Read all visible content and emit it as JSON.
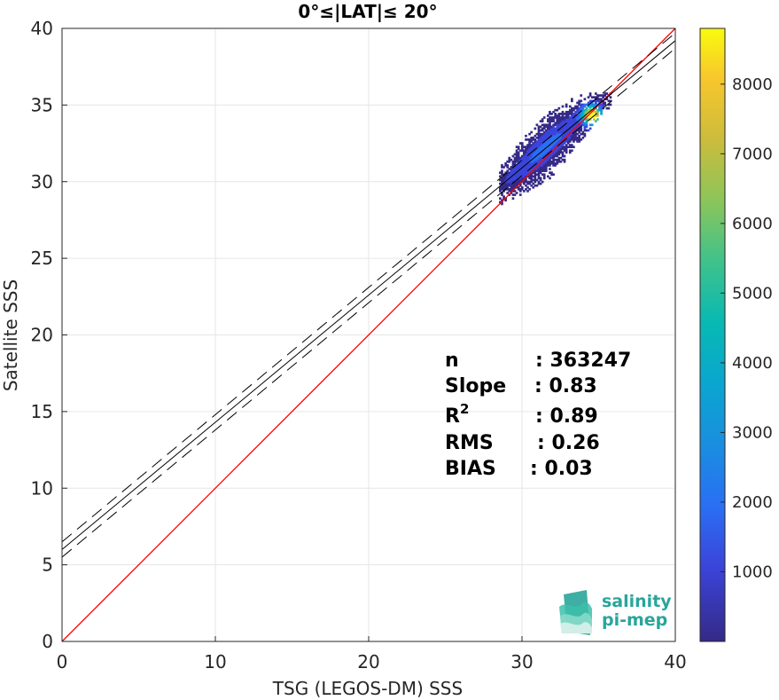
{
  "chart_data": {
    "type": "heatmap",
    "title": "0°≤|LAT|≤ 20°",
    "xlabel": "TSG (LEGOS-DM) SSS",
    "ylabel": "Satellite SSS",
    "xlim": [
      0,
      40
    ],
    "ylim": [
      0,
      40
    ],
    "xticks": [
      "0",
      "10",
      "20",
      "30",
      "40"
    ],
    "yticks": [
      "0",
      "5",
      "10",
      "15",
      "20",
      "25",
      "30",
      "35",
      "40"
    ],
    "grid": true,
    "colorbar": {
      "min": 0,
      "max": 8800,
      "ticks": [
        "1000",
        "2000",
        "3000",
        "4000",
        "5000",
        "6000",
        "7000",
        "8000"
      ],
      "tick_values": [
        1000,
        2000,
        3000,
        4000,
        5000,
        6000,
        7000,
        8000
      ],
      "colormap": "parula"
    },
    "identity_line": {
      "slope": 1,
      "intercept": 0,
      "color": "#ff0000"
    },
    "fit_line": {
      "slope": 0.83,
      "intercept": 6.0,
      "color": "#000000"
    },
    "fit_band_offset": 0.5,
    "density_cloud": {
      "x_range": [
        28.5,
        35.8
      ],
      "y_range": [
        28.5,
        35.8
      ],
      "peak": [
        34.5,
        34.3
      ]
    },
    "stats": [
      {
        "label": "n",
        "value": ": 363247"
      },
      {
        "label": "Slope",
        "value": ": 0.83"
      },
      {
        "label": "R",
        "sup": "2",
        "value": ": 0.89"
      },
      {
        "label": "RMS",
        "value": ": 0.26"
      },
      {
        "label": "BIAS",
        "value": ": 0.03"
      }
    ]
  },
  "logo": {
    "line1": "salinity",
    "line2": "pi-mep"
  }
}
